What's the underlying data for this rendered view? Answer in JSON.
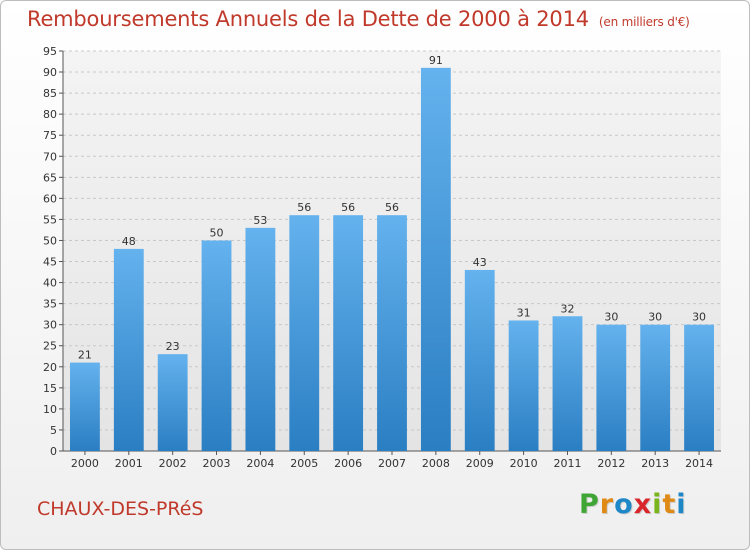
{
  "header": {
    "title": "Remboursements Annuels de la Dette de 2000 à 2014",
    "unit": "(en milliers d'€)"
  },
  "footer": {
    "commune": "CHAUX-DES-PRéS",
    "logo_letters": [
      "P",
      "r",
      "o",
      "x",
      "i",
      "t",
      "i"
    ],
    "logo_colors": [
      "#3fa535",
      "#e08a16",
      "#1e87c8",
      "#d8262b",
      "#7ab51d",
      "#e08a16",
      "#1e87c8"
    ]
  },
  "chart_data": {
    "type": "bar",
    "categories": [
      "2000",
      "2001",
      "2002",
      "2003",
      "2004",
      "2005",
      "2006",
      "2007",
      "2008",
      "2009",
      "2010",
      "2011",
      "2012",
      "2013",
      "2014"
    ],
    "values": [
      21,
      48,
      23,
      50,
      53,
      56,
      56,
      56,
      91,
      43,
      31,
      32,
      30,
      30,
      30
    ],
    "ylim": [
      0,
      95
    ],
    "yticks": [
      0,
      5,
      10,
      15,
      20,
      25,
      30,
      35,
      40,
      45,
      50,
      55,
      60,
      65,
      70,
      75,
      80,
      85,
      90,
      95
    ],
    "grid": true,
    "bar_color_top": "#64b2ee",
    "bar_color_bottom": "#2a7ec2"
  }
}
